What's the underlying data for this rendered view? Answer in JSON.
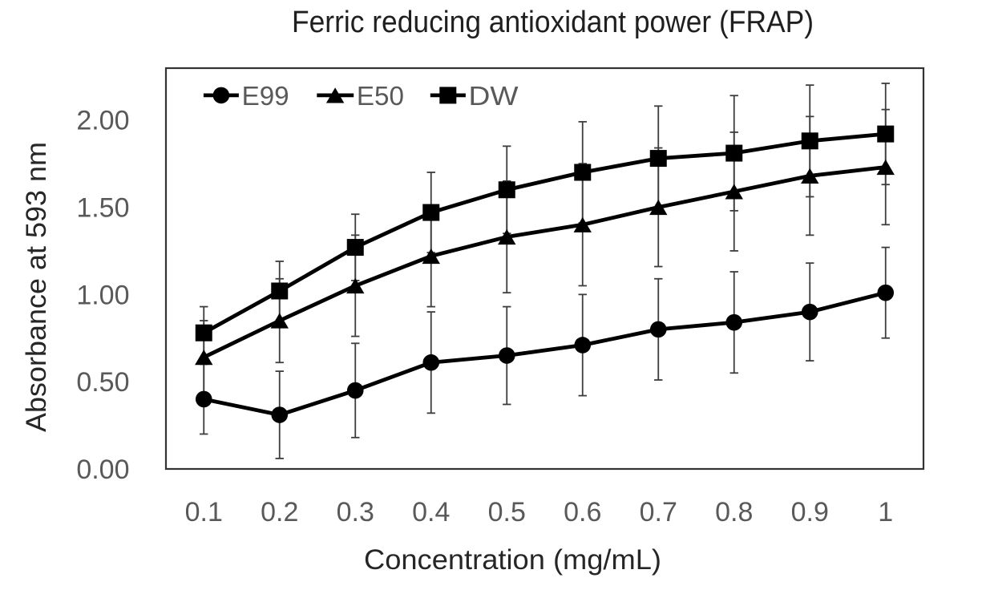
{
  "chart_data": {
    "type": "line",
    "title": "Ferric reducing antioxidant power (FRAP)",
    "xlabel": "Concentration (mg/mL)",
    "ylabel": "Absorbance at 593 nm",
    "categories": [
      "0.1",
      "0.2",
      "0.3",
      "0.4",
      "0.5",
      "0.6",
      "0.7",
      "0.8",
      "0.9",
      "1"
    ],
    "x_numeric": [
      0.1,
      0.2,
      0.3,
      0.4,
      0.5,
      0.6,
      0.7,
      0.8,
      0.9,
      1.0
    ],
    "y_ticks": [
      0.0,
      0.5,
      1.0,
      1.5,
      2.0
    ],
    "y_tick_labels": [
      "0.00",
      "0.50",
      "1.00",
      "1.50",
      "2.00"
    ],
    "ylim": [
      0,
      2.3
    ],
    "grid": false,
    "error_bars": true,
    "legend_position": "top-left-inside",
    "series": [
      {
        "name": "E99",
        "marker": "circle",
        "color": "#000000",
        "values": [
          0.4,
          0.31,
          0.45,
          0.61,
          0.65,
          0.71,
          0.8,
          0.84,
          0.9,
          1.01
        ],
        "errors": [
          0.2,
          0.25,
          0.27,
          0.29,
          0.28,
          0.29,
          0.29,
          0.29,
          0.28,
          0.26
        ]
      },
      {
        "name": "E50",
        "marker": "triangle",
        "color": "#000000",
        "values": [
          0.64,
          0.85,
          1.05,
          1.22,
          1.33,
          1.4,
          1.5,
          1.59,
          1.68,
          1.73
        ],
        "errors": [
          0.21,
          0.24,
          0.29,
          0.29,
          0.32,
          0.35,
          0.34,
          0.34,
          0.34,
          0.33
        ]
      },
      {
        "name": "DW",
        "marker": "square",
        "color": "#000000",
        "values": [
          0.78,
          1.02,
          1.27,
          1.47,
          1.6,
          1.7,
          1.78,
          1.81,
          1.88,
          1.92
        ],
        "errors": [
          0.15,
          0.17,
          0.19,
          0.23,
          0.25,
          0.29,
          0.3,
          0.33,
          0.32,
          0.29
        ]
      }
    ],
    "colors": {
      "series_line": "#000000",
      "error_bar": "#3d3d3d",
      "plot_border": "#333333",
      "title_text": "#1f1f1f",
      "axis_title_text": "#262626",
      "tick_label_text": "#595959",
      "legend_text": "#595959",
      "background": "#ffffff"
    }
  }
}
